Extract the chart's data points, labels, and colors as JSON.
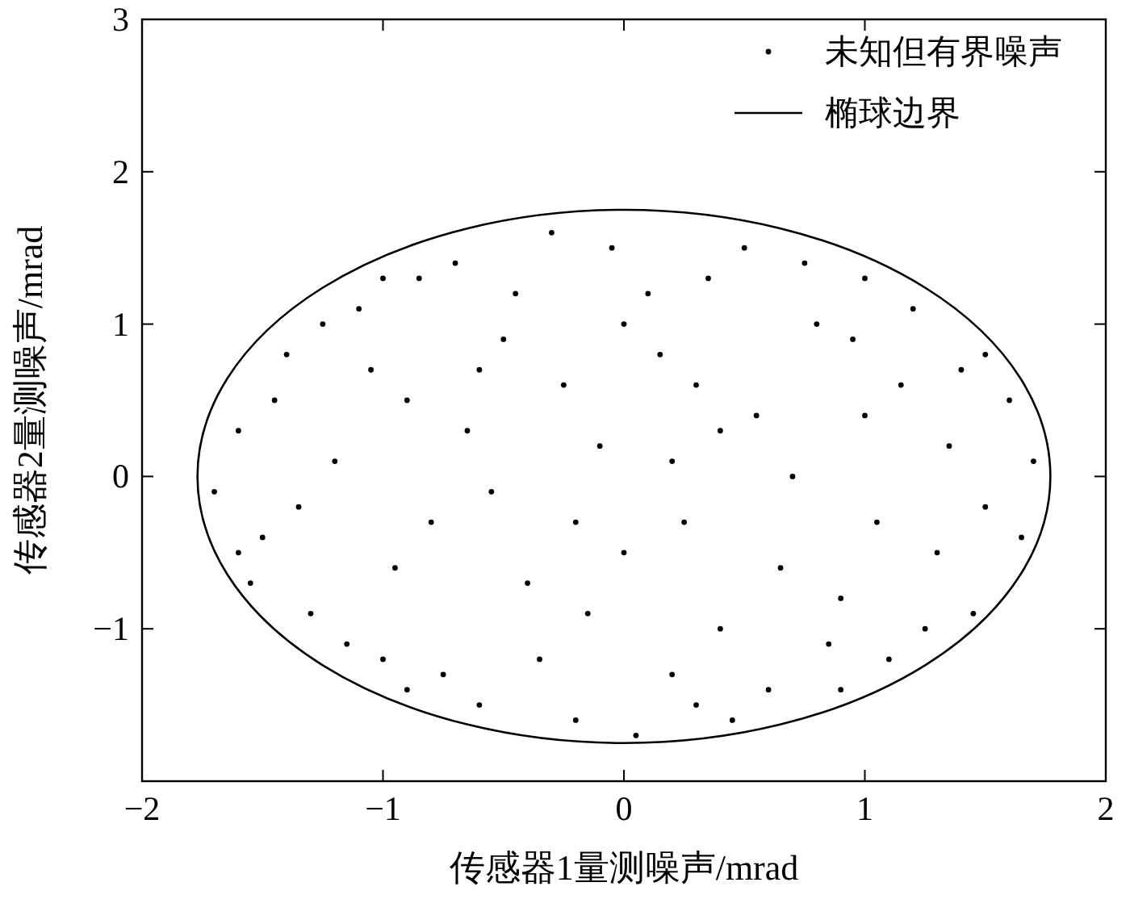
{
  "chart_data": {
    "type": "scatter",
    "xlabel": "传感器1量测噪声/mrad",
    "ylabel": "传感器2量测噪声/mrad",
    "xlim": [
      -2,
      2
    ],
    "ylim": [
      -2,
      3
    ],
    "xticks": [
      {
        "value": -2,
        "label": "−2"
      },
      {
        "value": -1,
        "label": "−1"
      },
      0,
      1,
      2
    ],
    "yticks": [
      {
        "value": -2,
        "label": null
      },
      {
        "value": -1,
        "label": "−1"
      },
      0,
      1,
      2,
      3
    ],
    "grid": false,
    "legend": "top right",
    "annotations": [
      "椭球边界"
    ],
    "series": [
      {
        "name": "未知但有界噪声",
        "marker": "circle",
        "color": "#000000",
        "x": [
          -1.6,
          -1.5,
          -1.4,
          -1.3,
          -1.2,
          -1.1,
          -1.0,
          -0.9,
          -0.8,
          -0.7,
          -0.6,
          -0.5,
          -0.4,
          -0.3,
          -0.2,
          -0.1,
          0,
          0.1,
          0.2,
          0.3,
          0.4,
          0.5,
          0.6,
          0.7,
          0.8,
          0.9,
          1.0,
          1.1,
          1.2,
          1.3,
          1.4,
          1.5,
          1.6,
          1.65,
          -1.55,
          -1.45,
          -1.35,
          -1.25,
          -1.15,
          -1.05,
          -0.95,
          -0.85,
          -0.75,
          -0.65,
          -0.55,
          -0.45,
          -0.35,
          -0.25,
          -0.15,
          -0.05,
          0.05,
          0.15,
          0.25,
          0.35,
          0.45,
          0.55,
          0.65,
          0.75,
          0.85,
          0.95,
          1.05,
          1.15,
          1.25,
          1.35,
          1.45,
          1.5,
          1.7,
          -1.7,
          -1.6,
          0.2,
          -0.2,
          0.4,
          -0.6,
          0.9,
          -0.9,
          1.0,
          -1.0,
          0.0,
          0.3
        ],
        "values": [
          0.3,
          -0.4,
          0.8,
          -0.9,
          0.1,
          1.1,
          -1.2,
          0.5,
          -0.3,
          1.4,
          -1.5,
          0.9,
          -0.7,
          1.6,
          -1.6,
          0.2,
          -0.5,
          1.2,
          -1.3,
          0.6,
          -1.0,
          1.5,
          -1.4,
          0.0,
          1.0,
          -0.8,
          0.4,
          -1.2,
          1.1,
          -0.5,
          0.7,
          -0.2,
          0.5,
          -0.4,
          -0.7,
          0.5,
          -0.2,
          1.0,
          -1.1,
          0.7,
          -0.6,
          1.3,
          -1.3,
          0.3,
          -0.1,
          1.2,
          -1.2,
          0.6,
          -0.9,
          1.5,
          -1.7,
          0.8,
          -0.3,
          1.3,
          -1.6,
          0.4,
          -0.6,
          1.4,
          -1.1,
          0.9,
          -0.3,
          0.6,
          -1.0,
          0.2,
          -0.9,
          0.8,
          0.1,
          -0.1,
          -0.5,
          0.1,
          -0.3,
          0.3,
          0.7,
          -1.4,
          -1.4,
          1.3,
          1.3,
          1.0,
          -1.5
        ]
      }
    ]
  }
}
